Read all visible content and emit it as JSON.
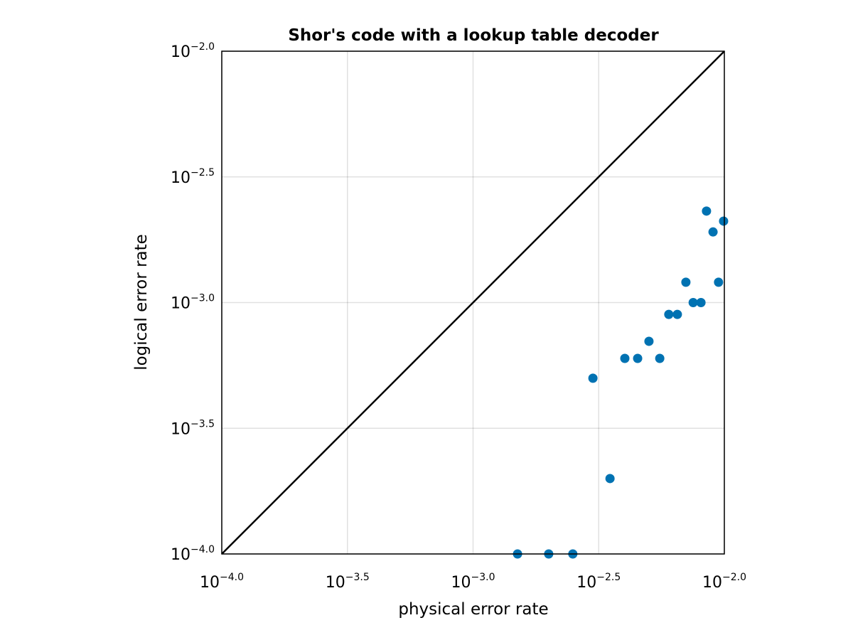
{
  "chart_data": {
    "type": "scatter",
    "title": "Shor's code with a lookup table decoder",
    "xlabel": "physical error rate",
    "ylabel": "logical error rate",
    "xscale": "log10",
    "yscale": "log10",
    "xlim": [
      0.0001,
      0.01
    ],
    "ylim": [
      0.0001,
      0.01
    ],
    "grid": true,
    "x_ticks": [
      {
        "base": "10",
        "exp": "−4.0",
        "value": -4
      },
      {
        "base": "10",
        "exp": "−3.5",
        "value": -3.5
      },
      {
        "base": "10",
        "exp": "−3.0",
        "value": -3
      },
      {
        "base": "10",
        "exp": "−2.5",
        "value": -2.5
      },
      {
        "base": "10",
        "exp": "−2.0",
        "value": -2
      }
    ],
    "y_ticks": [
      {
        "base": "10",
        "exp": "−4.0",
        "value": -4
      },
      {
        "base": "10",
        "exp": "−3.5",
        "value": -3.5
      },
      {
        "base": "10",
        "exp": "−3.0",
        "value": -3
      },
      {
        "base": "10",
        "exp": "−2.5",
        "value": -2.5
      },
      {
        "base": "10",
        "exp": "−2.0",
        "value": -2
      }
    ],
    "reference_line": {
      "description": "y = x",
      "color": "#000000"
    },
    "series": [
      {
        "color": "#0072b2",
        "log10_x": [
          -2.823,
          -2.699,
          -2.603,
          -2.523,
          -2.455,
          -2.396,
          -2.345,
          -2.3,
          -2.257,
          -2.221,
          -2.187,
          -2.153,
          -2.124,
          -2.093,
          -2.071,
          -2.045,
          -2.023,
          -2.003
        ],
        "log10_y": [
          -4.0,
          -4.0,
          -4.0,
          -3.301,
          -3.7,
          -3.222,
          -3.222,
          -3.154,
          -3.222,
          -3.047,
          -3.047,
          -2.919,
          -3.0,
          -3.0,
          -2.636,
          -2.719,
          -2.919,
          -2.676
        ]
      }
    ]
  }
}
